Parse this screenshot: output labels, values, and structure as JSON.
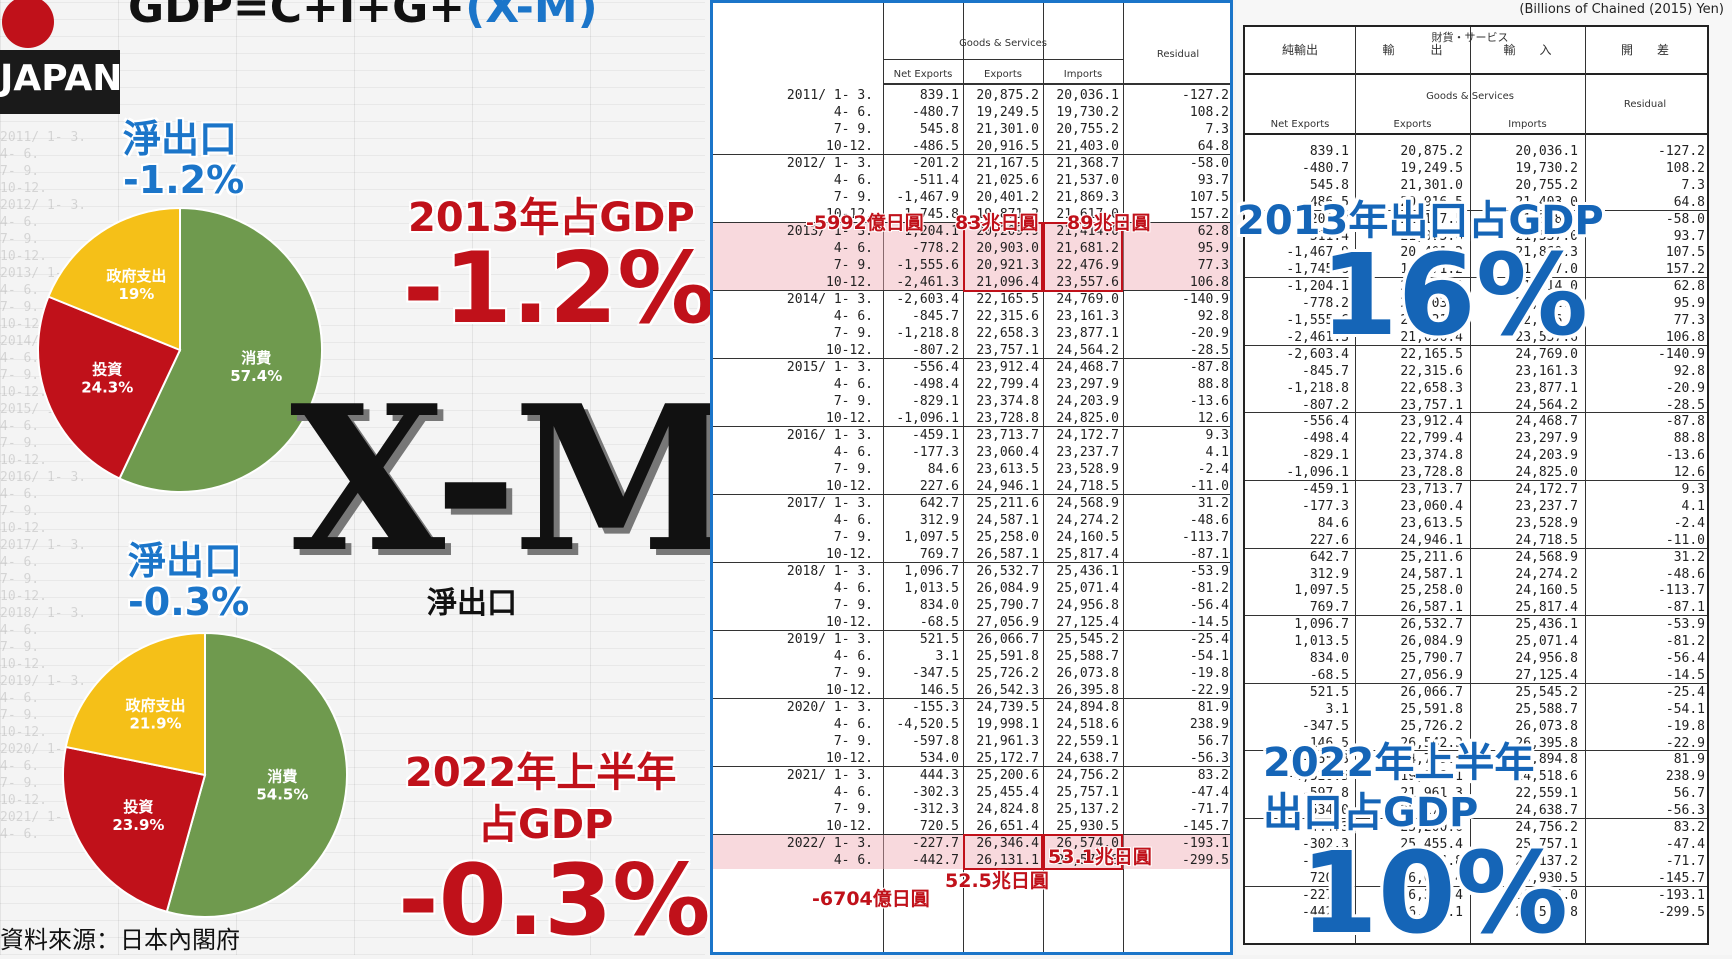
{
  "header": {
    "title_formula": "GDP=C+I+G+",
    "title_net": "(X-M)",
    "badge": "JAPAN",
    "unit": "(Billions of Chained (2015) Yen)"
  },
  "left_panel": {
    "ghost_row_labels": [
      "2011/ 1- 3.",
      "4- 6.",
      "7- 9.",
      "10-12.",
      "2012/ 1- 3.",
      "4- 6.",
      "7- 9.",
      "10-12.",
      "2013/ 1- 3.",
      "4- 6.",
      "7- 9.",
      "10-12.",
      "2014/ 1- 3.",
      "4- 6.",
      "7- 9.",
      "10-12.",
      "2015/ 1- 3.",
      "4- 6.",
      "7- 9.",
      "10-12.",
      "2016/ 1- 3.",
      "4- 6.",
      "7- 9.",
      "10-12.",
      "2017/ 1- 3.",
      "4- 6.",
      "7- 9.",
      "10-12.",
      "2018/ 1- 3.",
      "4- 6.",
      "7- 9.",
      "10-12.",
      "2019/ 1- 3.",
      "4- 6.",
      "7- 9.",
      "10-12.",
      "2020/ 1- 3.",
      "4- 6.",
      "7- 9.",
      "10-12.",
      "2021/ 1- 3.",
      "4- 6."
    ],
    "pie1_title": "淨出口",
    "pie1_value": "-1.2%",
    "pie2_title": "淨出口",
    "pie2_value": "-0.3%",
    "label_2013": "2013年占GDP",
    "big_2013": "-1.2%",
    "label_2022_line1": "2022年上半年",
    "label_2022_line2": "占GDP",
    "big_2022": "-0.3%",
    "xm_text": "X-M",
    "xm_caption": "淨出口",
    "source": "資料來源：日本內閣府"
  },
  "chart_data": [
    {
      "type": "pie",
      "title": "淨出口 -1.2%",
      "categories": [
        "消費",
        "投資",
        "政府支出"
      ],
      "values": [
        57.4,
        24.3,
        19.0
      ],
      "labels": [
        "57.4%",
        "24.3%",
        "19%"
      ],
      "colors": [
        "#6f9a4e",
        "#c0111a",
        "#f5c018"
      ]
    },
    {
      "type": "pie",
      "title": "淨出口 -0.3%",
      "categories": [
        "消費",
        "投資",
        "政府支出"
      ],
      "values": [
        54.5,
        23.9,
        21.9
      ],
      "labels": [
        "54.5%",
        "23.9%",
        "21.9%"
      ],
      "colors": [
        "#6f9a4e",
        "#c0111a",
        "#f5c018"
      ]
    },
    {
      "type": "table",
      "title": "Goods & Services",
      "columns": [
        "Net Exports",
        "Exports",
        "Imports",
        "Residual"
      ],
      "rows": [
        {
          "label": "2011/ 1- 3.",
          "values": [
            "839.1",
            "20,875.2",
            "20,036.1",
            "-127.2"
          ]
        },
        {
          "label": "4- 6.",
          "values": [
            "-480.7",
            "19,249.5",
            "19,730.2",
            "108.2"
          ]
        },
        {
          "label": "7- 9.",
          "values": [
            "545.8",
            "21,301.0",
            "20,755.2",
            "7.3"
          ]
        },
        {
          "label": "10-12.",
          "values": [
            "-486.5",
            "20,916.5",
            "21,403.0",
            "64.8"
          ]
        },
        {
          "label": "2012/ 1- 3.",
          "values": [
            "-201.2",
            "21,167.5",
            "21,368.7",
            "-58.0"
          ]
        },
        {
          "label": "4- 6.",
          "values": [
            "-511.4",
            "21,025.6",
            "21,537.0",
            "93.7"
          ]
        },
        {
          "label": "7- 9.",
          "values": [
            "-1,467.9",
            "20,401.2",
            "21,869.3",
            "107.5"
          ]
        },
        {
          "label": "10-12.",
          "values": [
            "-1,745.8",
            "19,871.2",
            "21,617.0",
            "157.2"
          ]
        },
        {
          "label": "2013/ 1- 3.",
          "values": [
            "-1,204.1",
            "20,209.9",
            "21,414.0",
            "62.8"
          ]
        },
        {
          "label": "4- 6.",
          "values": [
            "-778.2",
            "20,903.0",
            "21,681.2",
            "95.9"
          ]
        },
        {
          "label": "7- 9.",
          "values": [
            "-1,555.6",
            "20,921.3",
            "22,476.9",
            "77.3"
          ]
        },
        {
          "label": "10-12.",
          "values": [
            "-2,461.3",
            "21,096.4",
            "23,557.6",
            "106.8"
          ]
        },
        {
          "label": "2014/ 1- 3.",
          "values": [
            "-2,603.4",
            "22,165.5",
            "24,769.0",
            "-140.9"
          ]
        },
        {
          "label": "4- 6.",
          "values": [
            "-845.7",
            "22,315.6",
            "23,161.3",
            "92.8"
          ]
        },
        {
          "label": "7- 9.",
          "values": [
            "-1,218.8",
            "22,658.3",
            "23,877.1",
            "-20.9"
          ]
        },
        {
          "label": "10-12.",
          "values": [
            "-807.2",
            "23,757.1",
            "24,564.2",
            "-28.5"
          ]
        },
        {
          "label": "2015/ 1- 3.",
          "values": [
            "-556.4",
            "23,912.4",
            "24,468.7",
            "-87.8"
          ]
        },
        {
          "label": "4- 6.",
          "values": [
            "-498.4",
            "22,799.4",
            "23,297.9",
            "88.8"
          ]
        },
        {
          "label": "7- 9.",
          "values": [
            "-829.1",
            "23,374.8",
            "24,203.9",
            "-13.6"
          ]
        },
        {
          "label": "10-12.",
          "values": [
            "-1,096.1",
            "23,728.8",
            "24,825.0",
            "12.6"
          ]
        },
        {
          "label": "2016/ 1- 3.",
          "values": [
            "-459.1",
            "23,713.7",
            "24,172.7",
            "9.3"
          ]
        },
        {
          "label": "4- 6.",
          "values": [
            "-177.3",
            "23,060.4",
            "23,237.7",
            "4.1"
          ]
        },
        {
          "label": "7- 9.",
          "values": [
            "84.6",
            "23,613.5",
            "23,528.9",
            "-2.4"
          ]
        },
        {
          "label": "10-12.",
          "values": [
            "227.6",
            "24,946.1",
            "24,718.5",
            "-11.0"
          ]
        },
        {
          "label": "2017/ 1- 3.",
          "values": [
            "642.7",
            "25,211.6",
            "24,568.9",
            "31.2"
          ]
        },
        {
          "label": "4- 6.",
          "values": [
            "312.9",
            "24,587.1",
            "24,274.2",
            "-48.6"
          ]
        },
        {
          "label": "7- 9.",
          "values": [
            "1,097.5",
            "25,258.0",
            "24,160.5",
            "-113.7"
          ]
        },
        {
          "label": "10-12.",
          "values": [
            "769.7",
            "26,587.1",
            "25,817.4",
            "-87.1"
          ]
        },
        {
          "label": "2018/ 1- 3.",
          "values": [
            "1,096.7",
            "26,532.7",
            "25,436.1",
            "-53.9"
          ]
        },
        {
          "label": "4- 6.",
          "values": [
            "1,013.5",
            "26,084.9",
            "25,071.4",
            "-81.2"
          ]
        },
        {
          "label": "7- 9.",
          "values": [
            "834.0",
            "25,790.7",
            "24,956.8",
            "-56.4"
          ]
        },
        {
          "label": "10-12.",
          "values": [
            "-68.5",
            "27,056.9",
            "27,125.4",
            "-14.5"
          ]
        },
        {
          "label": "2019/ 1- 3.",
          "values": [
            "521.5",
            "26,066.7",
            "25,545.2",
            "-25.4"
          ]
        },
        {
          "label": "4- 6.",
          "values": [
            "3.1",
            "25,591.8",
            "25,588.7",
            "-54.1"
          ]
        },
        {
          "label": "7- 9.",
          "values": [
            "-347.5",
            "25,726.2",
            "26,073.8",
            "-19.8"
          ]
        },
        {
          "label": "10-12.",
          "values": [
            "146.5",
            "26,542.3",
            "26,395.8",
            "-22.9"
          ]
        },
        {
          "label": "2020/ 1- 3.",
          "values": [
            "-155.3",
            "24,739.5",
            "24,894.8",
            "81.9"
          ]
        },
        {
          "label": "4- 6.",
          "values": [
            "-4,520.5",
            "19,998.1",
            "24,518.6",
            "238.9"
          ]
        },
        {
          "label": "7- 9.",
          "values": [
            "-597.8",
            "21,961.3",
            "22,559.1",
            "56.7"
          ]
        },
        {
          "label": "10-12.",
          "values": [
            "534.0",
            "25,172.7",
            "24,638.7",
            "-56.3"
          ]
        },
        {
          "label": "2021/ 1- 3.",
          "values": [
            "444.3",
            "25,200.6",
            "24,756.2",
            "83.2"
          ]
        },
        {
          "label": "4- 6.",
          "values": [
            "-302.3",
            "25,455.4",
            "25,757.1",
            "-47.4"
          ]
        },
        {
          "label": "7- 9.",
          "values": [
            "-312.3",
            "24,824.8",
            "25,137.2",
            "-71.7"
          ]
        },
        {
          "label": "10-12.",
          "values": [
            "720.5",
            "26,651.4",
            "25,930.5",
            "-145.7"
          ]
        },
        {
          "label": "2022/ 1- 3.",
          "values": [
            "-227.7",
            "26,346.4",
            "26,574.0",
            "-193.1"
          ]
        },
        {
          "label": "4- 6.",
          "values": [
            "-442.7",
            "26,131.1",
            "26,573.8",
            "-299.5"
          ]
        }
      ]
    }
  ],
  "table_header": {
    "group": "Goods & Services",
    "net": "Net Exports",
    "exp": "Exports",
    "imp": "Imports",
    "res": "Residual",
    "jp_group": "財貨・サービス",
    "jp_net": "純輸出",
    "jp_exp": "輸　　　出",
    "jp_imp": "輸　　入",
    "jp_res": "開　　差"
  },
  "annotations": {
    "a1": "-5992億日圓",
    "a2": "83兆日圓",
    "a3": "89兆日圓",
    "a4": "53.1兆日圓",
    "a5": "52.5兆日圓",
    "a6": "-6704億日圓"
  },
  "right_panel": {
    "label_2013": "2013年出口占GDP",
    "big_2013": "16%",
    "label_2022_line1": "2022年上半年",
    "label_2022_line2": "出口占GDP",
    "big_2022": "10%"
  }
}
